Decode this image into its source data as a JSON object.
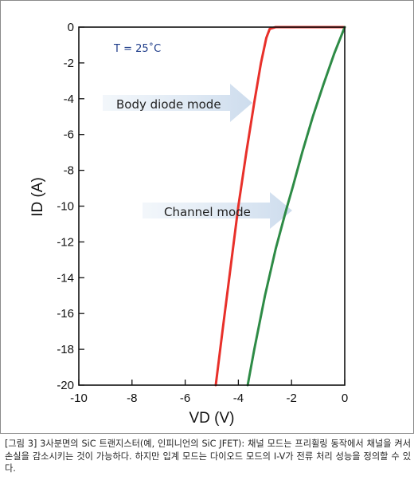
{
  "chart_data": {
    "type": "line",
    "xlabel": "VD (V)",
    "ylabel": "ID (A)",
    "xlim": [
      -10,
      0
    ],
    "ylim": [
      -20,
      0
    ],
    "xticks": [
      "-10",
      "-8",
      "-6",
      "-4",
      "-2",
      "0"
    ],
    "yticks": [
      "0",
      "-2",
      "-4",
      "-6",
      "-8",
      "-10",
      "-12",
      "-14",
      "-16",
      "-18",
      "-20"
    ],
    "grid": false,
    "series": [
      {
        "name": "Body diode mode",
        "color": "#e8302a",
        "x": [
          -4.85,
          -4.6,
          -4.3,
          -4.0,
          -3.7,
          -3.4,
          -3.15,
          -2.95,
          -2.82,
          -2.6,
          -2.0,
          -1.0,
          0.0
        ],
        "y": [
          -20.0,
          -17.0,
          -13.5,
          -10.0,
          -7.0,
          -4.2,
          -2.0,
          -0.6,
          -0.1,
          0.0,
          0.0,
          0.0,
          0.0
        ]
      },
      {
        "name": "Channel mode",
        "color": "#2e8b46",
        "x": [
          -3.65,
          -3.4,
          -3.0,
          -2.6,
          -2.2,
          -1.95,
          -1.6,
          -1.2,
          -0.8,
          -0.4,
          0.0
        ],
        "y": [
          -20.0,
          -18.0,
          -15.0,
          -12.4,
          -10.2,
          -8.9,
          -7.0,
          -5.0,
          -3.2,
          -1.5,
          0.0
        ]
      }
    ],
    "annotations": {
      "temperature": "T = 25˚C",
      "body_diode_label": "Body diode mode",
      "channel_label": "Channel mode"
    }
  },
  "caption": "[그림 3] 3사분면의 SiC 트랜지스터(예, 인피니언의 SiC JFET): 채널 모드는 프리휠링 동작에서 채널을 켜서 손실을 감소시키는 것이 가능하다. 하지만 입계 모드는 다이오드 모드의 I-V가 전류 처리 성능을 정의할 수 있다."
}
